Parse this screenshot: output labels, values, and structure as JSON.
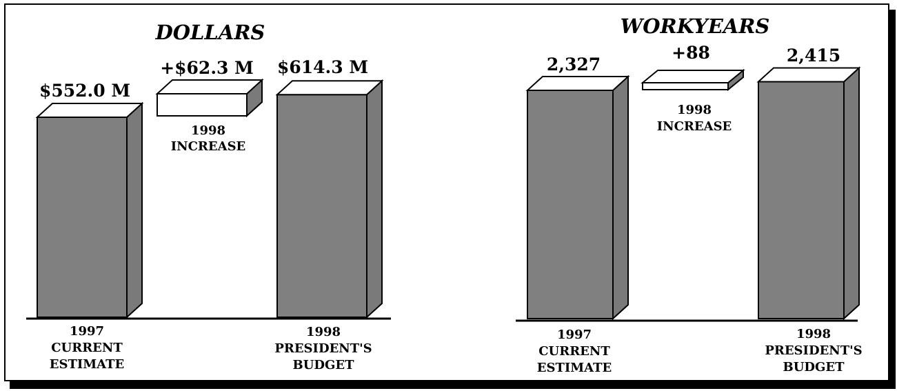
{
  "chart_data": [
    {
      "type": "bar",
      "title": "DOLLARS",
      "categories": [
        "1997 CURRENT ESTIMATE",
        "1998 PRESIDENT'S BUDGET"
      ],
      "values": [
        552.0,
        614.3
      ],
      "increase": 62.3,
      "value_labels": [
        "$552.0 M",
        "$614.3 M"
      ],
      "increase_label": "+$62.3 M",
      "increase_caption": [
        "1998",
        "INCREASE"
      ],
      "category_lines": [
        [
          "1997",
          "CURRENT",
          "ESTIMATE"
        ],
        [
          "1998",
          "PRESIDENT'S",
          "BUDGET"
        ]
      ],
      "xlabel": "",
      "ylabel": ""
    },
    {
      "type": "bar",
      "title": "WORKYEARS",
      "categories": [
        "1997 CURRENT ESTIMATE",
        "1998 PRESIDENT'S BUDGET"
      ],
      "values": [
        2327,
        2415
      ],
      "increase": 88,
      "value_labels": [
        "2,327",
        "2,415"
      ],
      "increase_label": "+88",
      "increase_caption": [
        "1998",
        "INCREASE"
      ],
      "category_lines": [
        [
          "1997",
          "CURRENT",
          "ESTIMATE"
        ],
        [
          "1998",
          "PRESIDENT'S",
          "BUDGET"
        ]
      ],
      "xlabel": "",
      "ylabel": ""
    }
  ],
  "colors": {
    "bar_front": "#808080",
    "bar_side": "#7a7a7a",
    "bar_top": "#ffffff",
    "increase_box": "#ffffff",
    "outline": "#000000"
  }
}
